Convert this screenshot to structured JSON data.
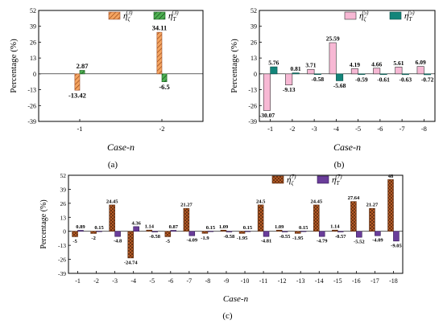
{
  "chart_data": [
    {
      "type": "bar",
      "panel_label": "(a)",
      "xlabel": "Case-n",
      "ylabel": "Percentage (%)",
      "ylim": [
        -39,
        52
      ],
      "yticks": [
        52,
        39,
        26,
        13,
        0,
        -13,
        -26,
        -39
      ],
      "categories": [
        "-1",
        "-2"
      ],
      "legend_position": "top-right",
      "series": [
        {
          "name": "η_ζ^(3)",
          "name_base": "η",
          "name_sub": "ζ",
          "name_sup": "(3)",
          "color": "#f4a460",
          "stroke": "#a0522d",
          "pattern": "diag",
          "values": [
            -13.42,
            34.11
          ],
          "labels": [
            "-13.42",
            "34.11"
          ]
        },
        {
          "name": "η_T^(3)",
          "name_base": "η",
          "name_sub": "T",
          "name_sup": "(3)",
          "color": "#4caf50",
          "stroke": "#1b5e20",
          "pattern": "diag",
          "values": [
            2.87,
            -6.5
          ],
          "labels": [
            "2.87",
            "-6.5"
          ]
        }
      ]
    },
    {
      "type": "bar",
      "panel_label": "(b)",
      "xlabel": "Case-n",
      "ylabel": "Percentage (%)",
      "ylim": [
        -39,
        52
      ],
      "yticks": [
        52,
        39,
        26,
        13,
        0,
        -13,
        -26,
        -39
      ],
      "categories": [
        "-1",
        "-2",
        "-3",
        "-4",
        "-5",
        "-6",
        "-7",
        "-8"
      ],
      "legend_position": "top-right",
      "series": [
        {
          "name": "η_ζ^(5)",
          "name_base": "η",
          "name_sub": "ζ",
          "name_sup": "(5)",
          "color": "#f7b8d4",
          "stroke": "#333333",
          "pattern": "solid",
          "values": [
            -30.07,
            -9.13,
            3.71,
            25.59,
            4.19,
            4.66,
            5.61,
            6.09
          ],
          "labels": [
            "-30.07",
            "-9.13",
            "3.71",
            "25.59",
            "4.19",
            "4.66",
            "5.61",
            "6.09"
          ]
        },
        {
          "name": "η_T^(5)",
          "name_base": "η",
          "name_sub": "T",
          "name_sup": "(5)",
          "color": "#13857a",
          "stroke": "#0b4d46",
          "pattern": "solid",
          "values": [
            5.76,
            0.81,
            -0.58,
            -5.68,
            -0.59,
            -0.61,
            -0.63,
            -0.72
          ],
          "labels": [
            "5.76",
            "0.81",
            "-0.58",
            "-5.68",
            "-0.59",
            "-0.61",
            "-0.63",
            "-0.72"
          ]
        }
      ]
    },
    {
      "type": "bar",
      "panel_label": "(c)",
      "xlabel": "Case-n",
      "ylabel": "Percentage (%)",
      "ylim": [
        -39,
        52
      ],
      "yticks": [
        52,
        39,
        26,
        13,
        0,
        -13,
        -26,
        -39
      ],
      "categories": [
        "-1",
        "-2",
        "-3",
        "-4",
        "-5",
        "-6",
        "-7",
        "-8",
        "-9",
        "-10",
        "-11",
        "-12",
        "-13",
        "-14",
        "-15",
        "-16",
        "-17",
        "-18"
      ],
      "legend_position": "top-right",
      "series": [
        {
          "name": "η_ζ^(7)",
          "name_base": "η",
          "name_sub": "ζ",
          "name_sup": "(7)",
          "color": "#c8642a",
          "stroke": "#5a2a0e",
          "pattern": "cross",
          "values": [
            -5,
            -2,
            24.45,
            -24.74,
            1.14,
            -5,
            21.27,
            -1.9,
            1.09,
            -1.95,
            24.5,
            1.09,
            -1.95,
            24.45,
            1.14,
            27.64,
            21.27,
            48
          ],
          "labels": [
            "-5",
            "-2",
            "24.45",
            "-24.74",
            "1.14",
            "-5",
            "21.27",
            "-1.9",
            "1.09",
            "-1.95",
            "24.5",
            "1.09",
            "-1.95",
            "24.45",
            "1.14",
            "27.64",
            "21.27",
            "48"
          ]
        },
        {
          "name": "η_T^(7)",
          "name_base": "η",
          "name_sub": "T",
          "name_sup": "(7)",
          "color": "#6a3d9a",
          "stroke": "#2e1450",
          "pattern": "solid",
          "values": [
            0.89,
            0.15,
            -4.8,
            4.36,
            -0.58,
            0.87,
            -4.09,
            0.15,
            -0.58,
            0.15,
            -4.81,
            -0.55,
            0.15,
            -4.79,
            -0.57,
            -5.52,
            -4.09,
            -9.05
          ],
          "labels": [
            "0.89",
            "0.15",
            "-4.8",
            "4.36",
            "-0.58",
            "0.87",
            "-4.09",
            "0.15",
            "-0.58",
            "0.15",
            "-4.81",
            "-0.55",
            "0.15",
            "-4.79",
            "-0.57",
            "-5.52",
            "-4.09",
            "-9.05"
          ]
        }
      ]
    }
  ]
}
